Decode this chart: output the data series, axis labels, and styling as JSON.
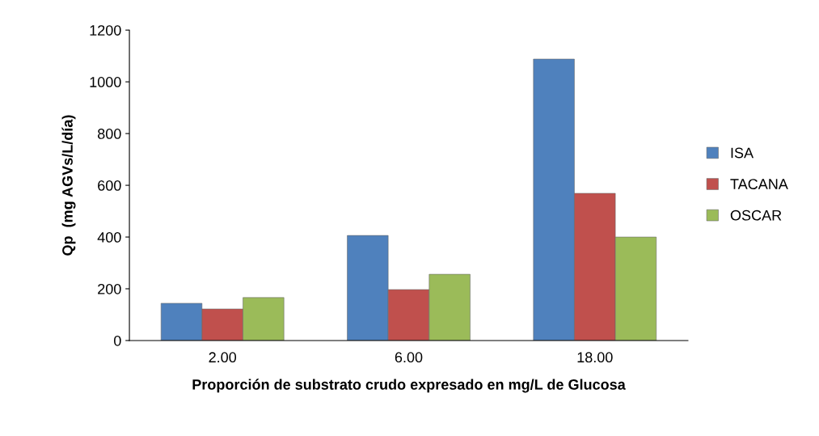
{
  "chart_data": {
    "type": "bar",
    "xlabel": "Proporción de substrato crudo expresado en mg/L de Glucosa",
    "ylabel": "Qp  (mg AGVs/L/día)",
    "categories": [
      "2.00",
      "6.00",
      "18.00"
    ],
    "series": [
      {
        "name": "ISA",
        "color": "#4f81bd",
        "values": [
          144,
          406,
          1088
        ]
      },
      {
        "name": "TACANA",
        "color": "#c0504d",
        "values": [
          122,
          197,
          569
        ]
      },
      {
        "name": "OSCAR",
        "color": "#9bbb59",
        "values": [
          166,
          256,
          400
        ]
      }
    ],
    "ylim": [
      0,
      1200
    ],
    "yticks": [
      0,
      200,
      400,
      600,
      800,
      1000,
      1200
    ],
    "grid": false,
    "legend": "right"
  }
}
